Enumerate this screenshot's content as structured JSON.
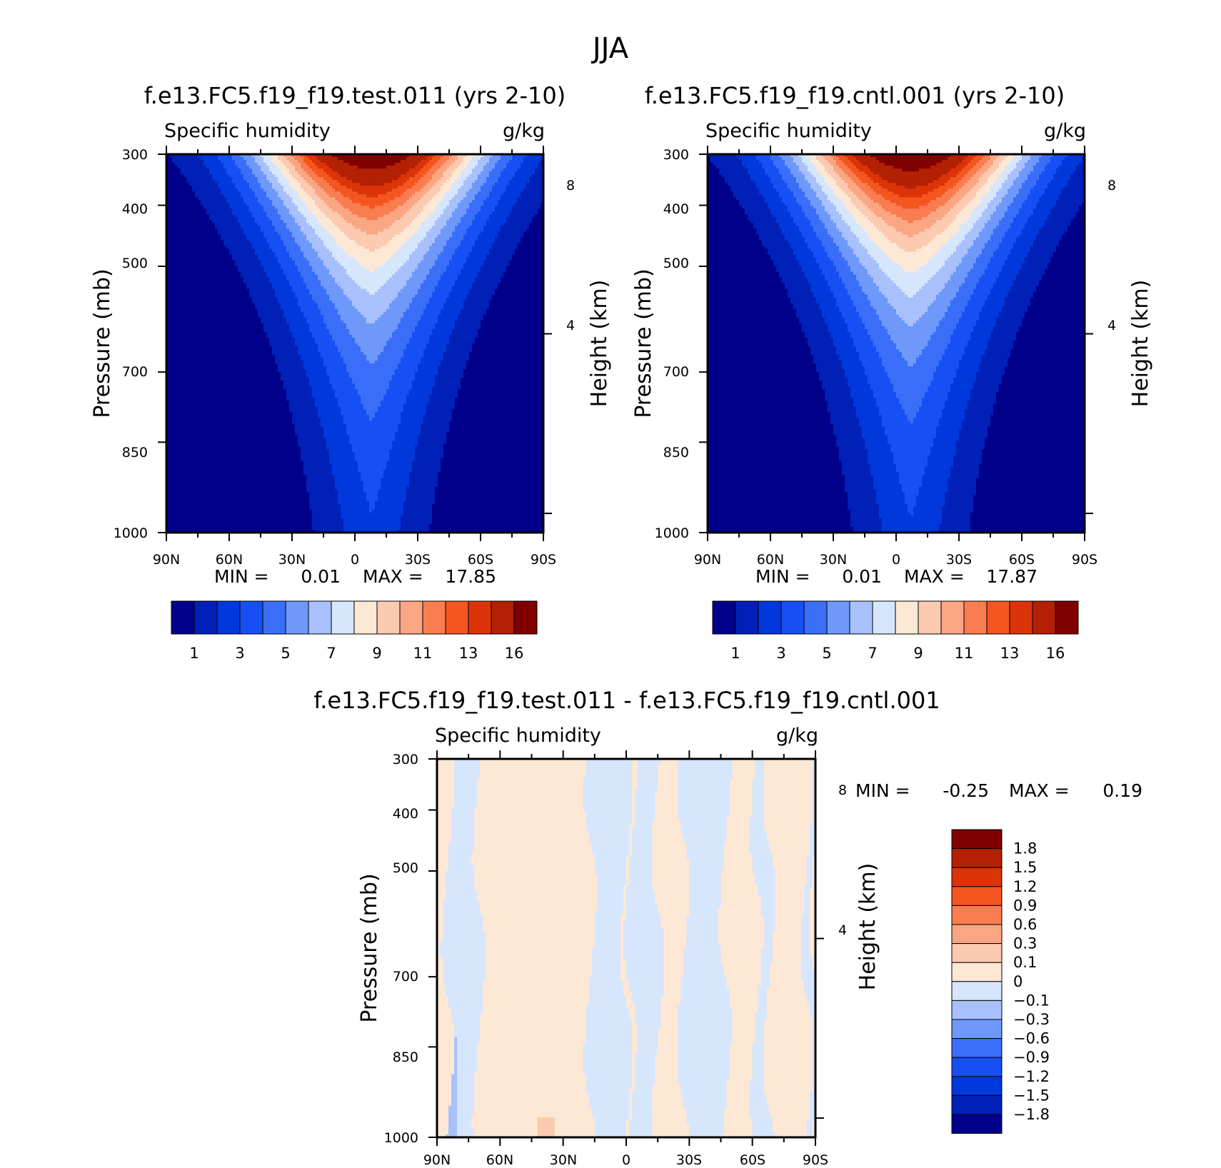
{
  "page_title": "JJA",
  "chart_data": [
    {
      "id": "test",
      "type": "heatmap",
      "title": "f.e13.FC5.f19_f19.test.011 (yrs 2-10)",
      "subtitle_left": "Specific humidity",
      "subtitle_right": "g/kg",
      "xlabel": "",
      "ylabel": "Pressure (mb)",
      "y2label": "Height (km)",
      "x_ticks": [
        "90N",
        "60N",
        "30N",
        "0",
        "30S",
        "60S",
        "90S"
      ],
      "y_ticks": [
        300,
        400,
        500,
        700,
        850,
        1000
      ],
      "y2_ticks": [
        8,
        4
      ],
      "ylim": [
        1000,
        300
      ],
      "stats": {
        "min_label": "MIN =",
        "min": "0.01",
        "max_label": "MAX =",
        "max": "17.85"
      },
      "field": {
        "peak_lat": -8,
        "peak_value": 17.85,
        "pbl_shift": 0
      },
      "colorbar": {
        "orientation": "horizontal",
        "tick_labels": [
          "1",
          "3",
          "5",
          "7",
          "9",
          "11",
          "13",
          "16"
        ],
        "colors": [
          "#00008a",
          "#0020b8",
          "#0038dc",
          "#1650f4",
          "#3a6ef8",
          "#6e98fa",
          "#a8c0fc",
          "#d6e6fc",
          "#fde8d6",
          "#fccab0",
          "#fba683",
          "#f97d50",
          "#f5551f",
          "#dd3308",
          "#b32004",
          "#800000"
        ]
      }
    },
    {
      "id": "cntl",
      "type": "heatmap",
      "title": "f.e13.FC5.f19_f19.cntl.001 (yrs 2-10)",
      "subtitle_left": "Specific humidity",
      "subtitle_right": "g/kg",
      "xlabel": "",
      "ylabel": "Pressure (mb)",
      "y2label": "Height (km)",
      "x_ticks": [
        "90N",
        "60N",
        "30N",
        "0",
        "30S",
        "60S",
        "90S"
      ],
      "y_ticks": [
        300,
        400,
        500,
        700,
        850,
        1000
      ],
      "y2_ticks": [
        8,
        4
      ],
      "ylim": [
        1000,
        300
      ],
      "stats": {
        "min_label": "MIN =",
        "min": "0.01",
        "max_label": "MAX =",
        "max": "17.87"
      },
      "field": {
        "peak_lat": -7,
        "peak_value": 17.87,
        "pbl_shift": 0.6
      },
      "colorbar": {
        "orientation": "horizontal",
        "tick_labels": [
          "1",
          "3",
          "5",
          "7",
          "9",
          "11",
          "13",
          "16"
        ],
        "colors": [
          "#00008a",
          "#0020b8",
          "#0038dc",
          "#1650f4",
          "#3a6ef8",
          "#6e98fa",
          "#a8c0fc",
          "#d6e6fc",
          "#fde8d6",
          "#fccab0",
          "#fba683",
          "#f97d50",
          "#f5551f",
          "#dd3308",
          "#b32004",
          "#800000"
        ]
      }
    },
    {
      "id": "diff",
      "type": "heatmap",
      "title": "f.e13.FC5.f19_f19.test.011 - f.e13.FC5.f19_f19.cntl.001",
      "subtitle_left": "Specific humidity",
      "subtitle_right": "g/kg",
      "xlabel": "",
      "ylabel": "Pressure (mb)",
      "y2label": "Height (km)",
      "x_ticks": [
        "90N",
        "60N",
        "30N",
        "0",
        "30S",
        "60S",
        "90S"
      ],
      "y_ticks": [
        300,
        400,
        500,
        700,
        850,
        1000
      ],
      "y2_ticks": [
        8,
        4
      ],
      "ylim": [
        1000,
        300
      ],
      "stats": {
        "min_label": "MIN =",
        "min": "-0.25",
        "max_label": "MAX =",
        "max": "0.19"
      },
      "field": {
        "negative_lat_bands": [
          [
            85,
            70
          ],
          [
            17,
            0
          ],
          [
            -2,
            -15
          ],
          [
            -27,
            -47
          ],
          [
            -62,
            -68
          ],
          [
            -86,
            -90
          ]
        ]
      },
      "colorbar": {
        "orientation": "vertical",
        "tick_labels": [
          "1.8",
          "1.5",
          "1.2",
          "0.9",
          "0.6",
          "0.3",
          "0.1",
          "0",
          "-0.1",
          "-0.3",
          "-0.6",
          "-0.9",
          "-1.2",
          "-1.5",
          "-1.8"
        ],
        "colors": [
          "#800000",
          "#b32004",
          "#dd3308",
          "#f5551f",
          "#f97d50",
          "#fba683",
          "#fccab0",
          "#fde8d6",
          "#d6e6fc",
          "#a8c0fc",
          "#6e98fa",
          "#3a6ef8",
          "#1650f4",
          "#0038dc",
          "#0020b8",
          "#00008a"
        ]
      }
    }
  ]
}
